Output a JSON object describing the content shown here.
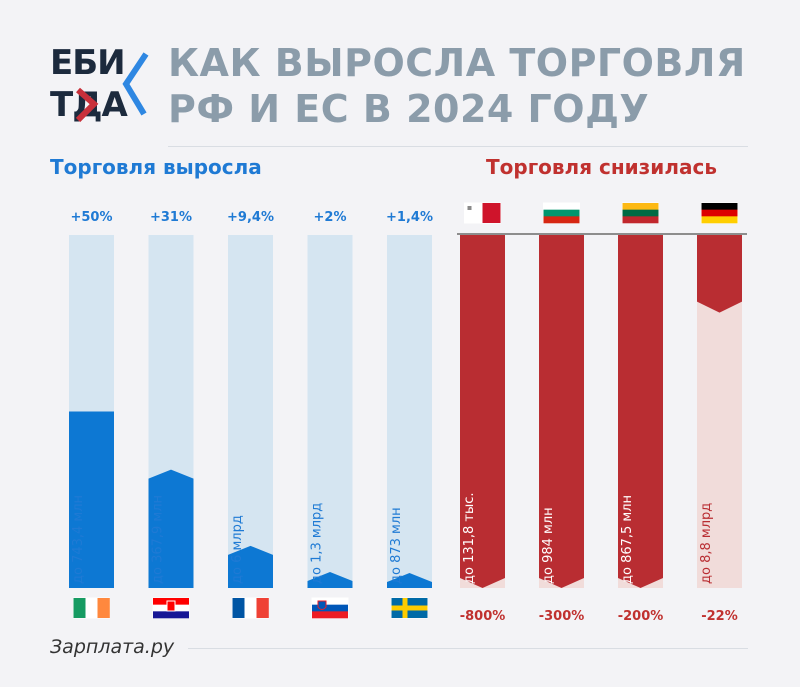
{
  "logo": {
    "top": "ЕБИ",
    "bottom": "ТДА"
  },
  "header": {
    "title_line1": "КАК ВЫРОСЛА ТОРГОВЛЯ",
    "title_line2": "РФ И ЕС В 2024 ГОДУ"
  },
  "growth_title": "Торговля выросла",
  "decline_title": "Торговля снизилась",
  "source": "Зарплата.ру",
  "colors": {
    "growth": "#0d78d3",
    "growth_track": "#d5e5f1",
    "decline": "#b92d32",
    "decline_track": "#f1dcda",
    "growth_label": "#1f7ad4",
    "decline_label": "#c0312f"
  },
  "chart_data": [
    {
      "type": "bar",
      "categories": [
        "Ирландия",
        "Хорватия",
        "Франция",
        "Словения",
        "Швеция"
      ],
      "values": [
        50,
        31,
        9.4,
        2,
        1.4
      ],
      "value_labels": [
        "+50%",
        "+31%",
        "+9,4%",
        "+2%",
        "+1,4%"
      ],
      "bar_labels": [
        "до 743,4 млн",
        "до 367,9 млн",
        "до 6 млрд",
        "до 1,3 млрд",
        "до 873 млн"
      ],
      "flags": [
        "ireland-flag-icon",
        "croatia-flag-icon",
        "france-flag-icon",
        "slovenia-flag-icon",
        "sweden-flag-icon"
      ],
      "ylim": [
        0,
        100
      ]
    },
    {
      "type": "bar",
      "categories": [
        "Мальта",
        "Болгария",
        "Литва",
        "Германия"
      ],
      "values": [
        -800,
        -300,
        -200,
        -22
      ],
      "value_labels": [
        "-800%",
        "-300%",
        "-200%",
        "-22%"
      ],
      "bar_labels": [
        "до 131,8 тыс.",
        "до 984 млн",
        "до 867,5 млн",
        "до 8,8 млрд"
      ],
      "flags": [
        "malta-flag-icon",
        "bulgaria-flag-icon",
        "lithuania-flag-icon",
        "germany-flag-icon"
      ],
      "ylim": [
        -100,
        0
      ]
    }
  ]
}
